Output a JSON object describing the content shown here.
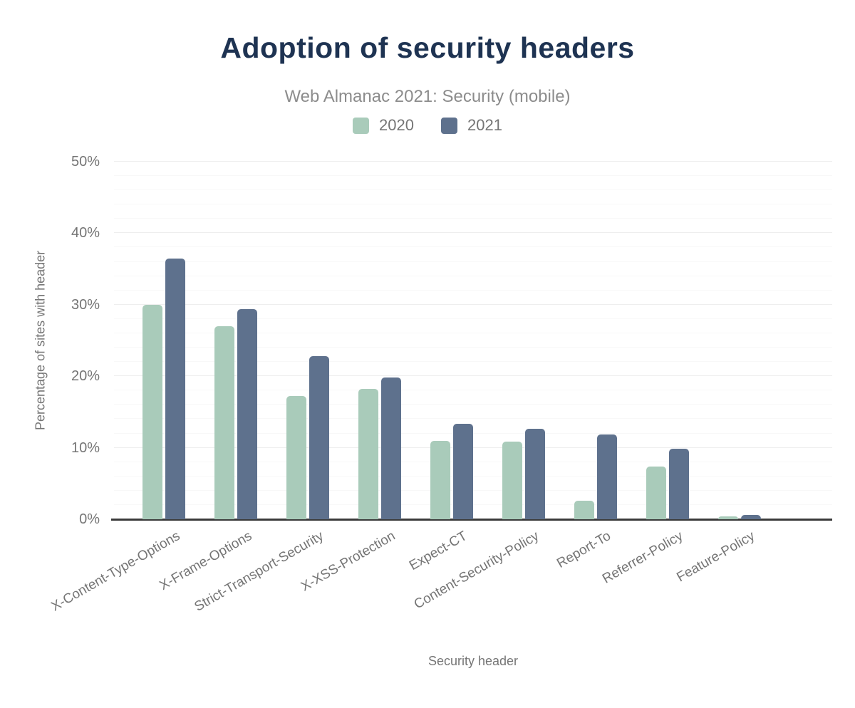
{
  "header": {
    "title": "Adoption of security headers",
    "subtitle": "Web Almanac 2021: Security (mobile)"
  },
  "colors": {
    "title": "#1e3352",
    "text_muted": "#757575",
    "subtitle": "#8c8c8c",
    "axis_line": "#3a3a3a",
    "series_2020": "#a9cbba",
    "series_2021": "#5e718d"
  },
  "chart_data": {
    "type": "bar",
    "title": "Adoption of security headers",
    "subtitle": "Web Almanac 2021: Security (mobile)",
    "xlabel": "Security header",
    "ylabel": "Percentage of sites with header",
    "ylim": [
      0,
      50
    ],
    "y_tick_step": 10,
    "y_minor_gridline_step": 2,
    "y_tick_suffix": "%",
    "grid": "horizontal",
    "legend_position": "top",
    "categories": [
      "X-Content-Type-Options",
      "X-Frame-Options",
      "Strict-Transport-Security",
      "X-XSS-Protection",
      "Expect-CT",
      "Content-Security-Policy",
      "Report-To",
      "Referrer-Policy",
      "Feature-Policy"
    ],
    "series": [
      {
        "name": "2020",
        "color": "#a9cbba",
        "values": [
          30.0,
          27.0,
          17.2,
          18.2,
          11.0,
          10.9,
          2.6,
          7.4,
          0.4
        ]
      },
      {
        "name": "2021",
        "color": "#5e718d",
        "values": [
          36.5,
          29.4,
          22.8,
          19.8,
          13.3,
          12.7,
          11.9,
          9.9,
          0.6
        ]
      }
    ]
  }
}
